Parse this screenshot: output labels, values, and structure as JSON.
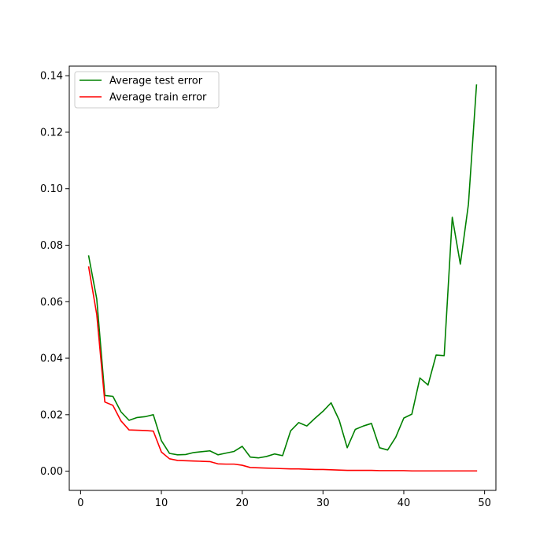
{
  "chart_data": {
    "type": "line",
    "title": "",
    "xlabel": "",
    "ylabel": "",
    "xlim": [
      -1.4,
      51.4
    ],
    "ylim": [
      -0.0068,
      0.1434
    ],
    "xticks": [
      0,
      10,
      20,
      30,
      40,
      50
    ],
    "yticks": [
      0.0,
      0.02,
      0.04,
      0.06,
      0.08,
      0.1,
      0.12,
      0.14
    ],
    "xtick_labels": [
      "0",
      "10",
      "20",
      "30",
      "40",
      "50"
    ],
    "ytick_labels": [
      "0.00",
      "0.02",
      "0.04",
      "0.06",
      "0.08",
      "0.10",
      "0.12",
      "0.14"
    ],
    "grid": false,
    "legend_position": "top-left",
    "x": [
      1,
      2,
      3,
      4,
      5,
      6,
      7,
      8,
      9,
      10,
      11,
      12,
      13,
      14,
      15,
      16,
      17,
      18,
      19,
      20,
      21,
      22,
      23,
      24,
      25,
      26,
      27,
      28,
      29,
      30,
      31,
      32,
      33,
      34,
      35,
      36,
      37,
      38,
      39,
      40,
      41,
      42,
      43,
      44,
      45,
      46,
      47,
      48,
      49
    ],
    "series": [
      {
        "name": "Average test error",
        "color": "#008000",
        "values": [
          0.0762,
          0.061,
          0.0268,
          0.0265,
          0.021,
          0.018,
          0.019,
          0.0193,
          0.02,
          0.0108,
          0.0063,
          0.0058,
          0.0059,
          0.0066,
          0.0069,
          0.0072,
          0.0058,
          0.0064,
          0.007,
          0.0088,
          0.005,
          0.0047,
          0.0052,
          0.0061,
          0.0055,
          0.0143,
          0.0172,
          0.016,
          0.0187,
          0.0212,
          0.0242,
          0.0181,
          0.0083,
          0.0148,
          0.016,
          0.0169,
          0.0083,
          0.0075,
          0.012,
          0.0188,
          0.0202,
          0.033,
          0.0305,
          0.0411,
          0.0409,
          0.0899,
          0.0733,
          0.0945,
          0.1367
        ]
      },
      {
        "name": "Average train error",
        "color": "#ff0000",
        "values": [
          0.0723,
          0.0555,
          0.0245,
          0.0233,
          0.0178,
          0.0146,
          0.0145,
          0.0144,
          0.0142,
          0.0068,
          0.0044,
          0.0038,
          0.0037,
          0.0036,
          0.0035,
          0.0034,
          0.0026,
          0.0025,
          0.0025,
          0.0021,
          0.0013,
          0.0012,
          0.0011,
          0.001,
          0.0009,
          0.0008,
          0.0008,
          0.0007,
          0.0006,
          0.0006,
          0.0005,
          0.0004,
          0.0003,
          0.0003,
          0.0003,
          0.0003,
          0.0002,
          0.0002,
          0.0002,
          0.0002,
          0.0001,
          0.0001,
          0.0001,
          0.0001,
          0.0001,
          0.0001,
          0.0001,
          0.0001,
          0.0001
        ]
      }
    ]
  }
}
